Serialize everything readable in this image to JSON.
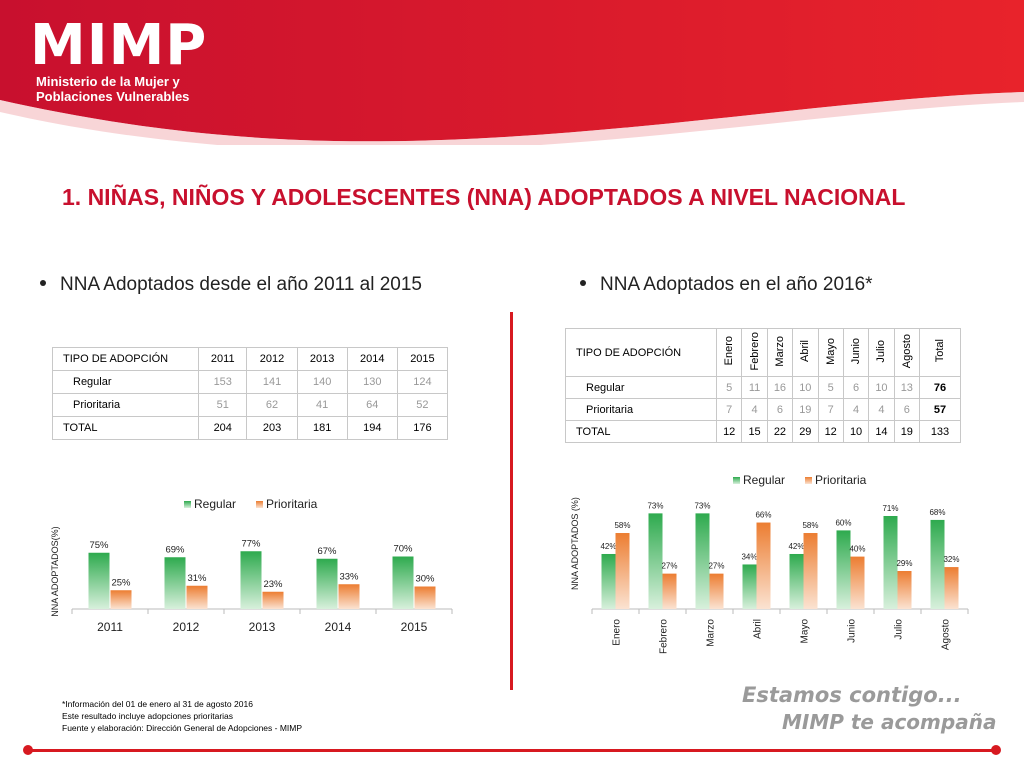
{
  "header": {
    "logo": "MIMP",
    "logo_line1": "Ministerio de la Mujer y",
    "logo_line2": "Poblaciones Vulnerables"
  },
  "title": "1. NIÑAS, NIÑOS Y ADOLESCENTES (NNA) ADOPTADOS A NIVEL NACIONAL",
  "left": {
    "bullet": "NNA Adoptados desde el año 2011 al 2015",
    "table": {
      "header": [
        "TIPO DE ADOPCIÓN",
        "2011",
        "2012",
        "2013",
        "2014",
        "2015"
      ],
      "rows": [
        [
          "Regular",
          "153",
          "141",
          "140",
          "130",
          "124"
        ],
        [
          "Prioritaria",
          "51",
          "62",
          "41",
          "64",
          "52"
        ],
        [
          "TOTAL",
          "204",
          "203",
          "181",
          "194",
          "176"
        ]
      ]
    }
  },
  "right": {
    "bullet": "NNA Adoptados en el año 2016*",
    "table": {
      "header": [
        "TIPO DE ADOPCIÓN",
        "Enero",
        "Febrero",
        "Marzo",
        "Abril",
        "Mayo",
        "Junio",
        "Julio",
        "Agosto",
        "Total"
      ],
      "rows": [
        [
          "Regular",
          "5",
          "11",
          "16",
          "10",
          "5",
          "6",
          "10",
          "13",
          "76"
        ],
        [
          "Prioritaria",
          "7",
          "4",
          "6",
          "19",
          "7",
          "4",
          "4",
          "6",
          "57"
        ],
        [
          "TOTAL",
          "12",
          "15",
          "22",
          "29",
          "12",
          "10",
          "14",
          "19",
          "133"
        ]
      ]
    }
  },
  "chart_data": [
    {
      "type": "bar",
      "categories": [
        "2011",
        "2012",
        "2013",
        "2014",
        "2015"
      ],
      "series": [
        {
          "name": "Regular",
          "values": [
            75,
            69,
            77,
            67,
            70
          ],
          "labels": [
            "75%",
            "69%",
            "77%",
            "67%",
            "70%"
          ]
        },
        {
          "name": "Prioritaria",
          "values": [
            25,
            31,
            23,
            33,
            30
          ],
          "labels": [
            "25%",
            "31%",
            "23%",
            "33%",
            "30%"
          ]
        }
      ],
      "ylabel": "NNA ADOPTADOS(%)",
      "legend": "top",
      "ylim": [
        0,
        100
      ]
    },
    {
      "type": "bar",
      "categories": [
        "Enero",
        "Febrero",
        "Marzo",
        "Abril",
        "Mayo",
        "Junio",
        "Julio",
        "Agosto"
      ],
      "series": [
        {
          "name": "Regular",
          "values": [
            42,
            73,
            73,
            34,
            42,
            60,
            71,
            68
          ],
          "labels": [
            "42%",
            "73%",
            "73%",
            "34%",
            "42%",
            "60%",
            "71%",
            "68%"
          ]
        },
        {
          "name": "Prioritaria",
          "values": [
            58,
            27,
            27,
            66,
            58,
            40,
            29,
            32
          ],
          "labels": [
            "58%",
            "27%",
            "27%",
            "66%",
            "58%",
            "40%",
            "29%",
            "32%"
          ]
        }
      ],
      "ylabel": "NNA ADOPTADOS (%)",
      "legend": "top",
      "ylim": [
        0,
        100
      ]
    }
  ],
  "colors": {
    "regular": "#2eaa4e",
    "prioritaria": "#ec7d31",
    "brand": "#d71920"
  },
  "footnote": [
    "*Información del 01 de enero al 31 de agosto 2016",
    "Este resultado incluye adopciones prioritarias",
    "Fuente y elaboración: Dirección General de Adopciones - MIMP"
  ],
  "slogan": [
    "Estamos contigo...",
    "MIMP te acompaña"
  ]
}
